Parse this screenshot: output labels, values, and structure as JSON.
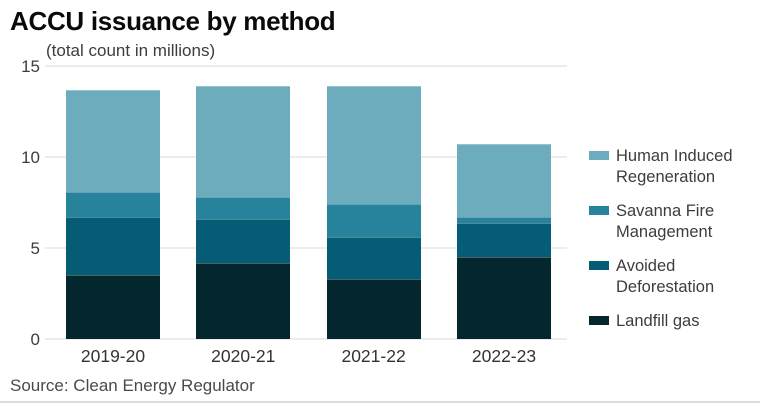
{
  "header": {
    "title": "ACCU issuance by method",
    "subtitle": "(total count in millions)"
  },
  "source": {
    "text": "Source: Clean Energy Regulator"
  },
  "colors": {
    "human_induced_regeneration": "#6dacbd",
    "savanna_fire_management": "#27829b",
    "avoided_deforestation": "#055d75",
    "landfill_gas": "#03262f",
    "gridline": "#ececec"
  },
  "chart_data": {
    "type": "bar",
    "stacked": true,
    "title": "ACCU issuance by method",
    "subtitle": "(total count in millions)",
    "categories": [
      "2019-20",
      "2020-21",
      "2021-22",
      "2022-23"
    ],
    "series": [
      {
        "name": "Landfill gas",
        "color": "#03262f",
        "values": [
          3.5,
          4.2,
          3.3,
          4.5
        ]
      },
      {
        "name": "Avoided Deforestation",
        "color": "#055d75",
        "values": [
          3.2,
          2.4,
          2.3,
          1.9
        ]
      },
      {
        "name": "Savanna Fire Management",
        "color": "#27829b",
        "values": [
          1.4,
          1.2,
          1.8,
          0.3
        ]
      },
      {
        "name": "Human Induced Regeneration",
        "color": "#6dacbd",
        "values": [
          5.6,
          6.1,
          6.5,
          4.0
        ]
      }
    ],
    "totals": [
      13.7,
      13.9,
      13.9,
      10.7
    ],
    "xlabel": "",
    "ylabel": "total count in millions",
    "ylim": [
      0,
      15
    ],
    "yticks": [
      0,
      5,
      10,
      15
    ],
    "grid": true,
    "legend_position": "right",
    "legend_order": [
      "Human Induced Regeneration",
      "Savanna Fire Management",
      "Avoided Deforestation",
      "Landfill gas"
    ]
  }
}
